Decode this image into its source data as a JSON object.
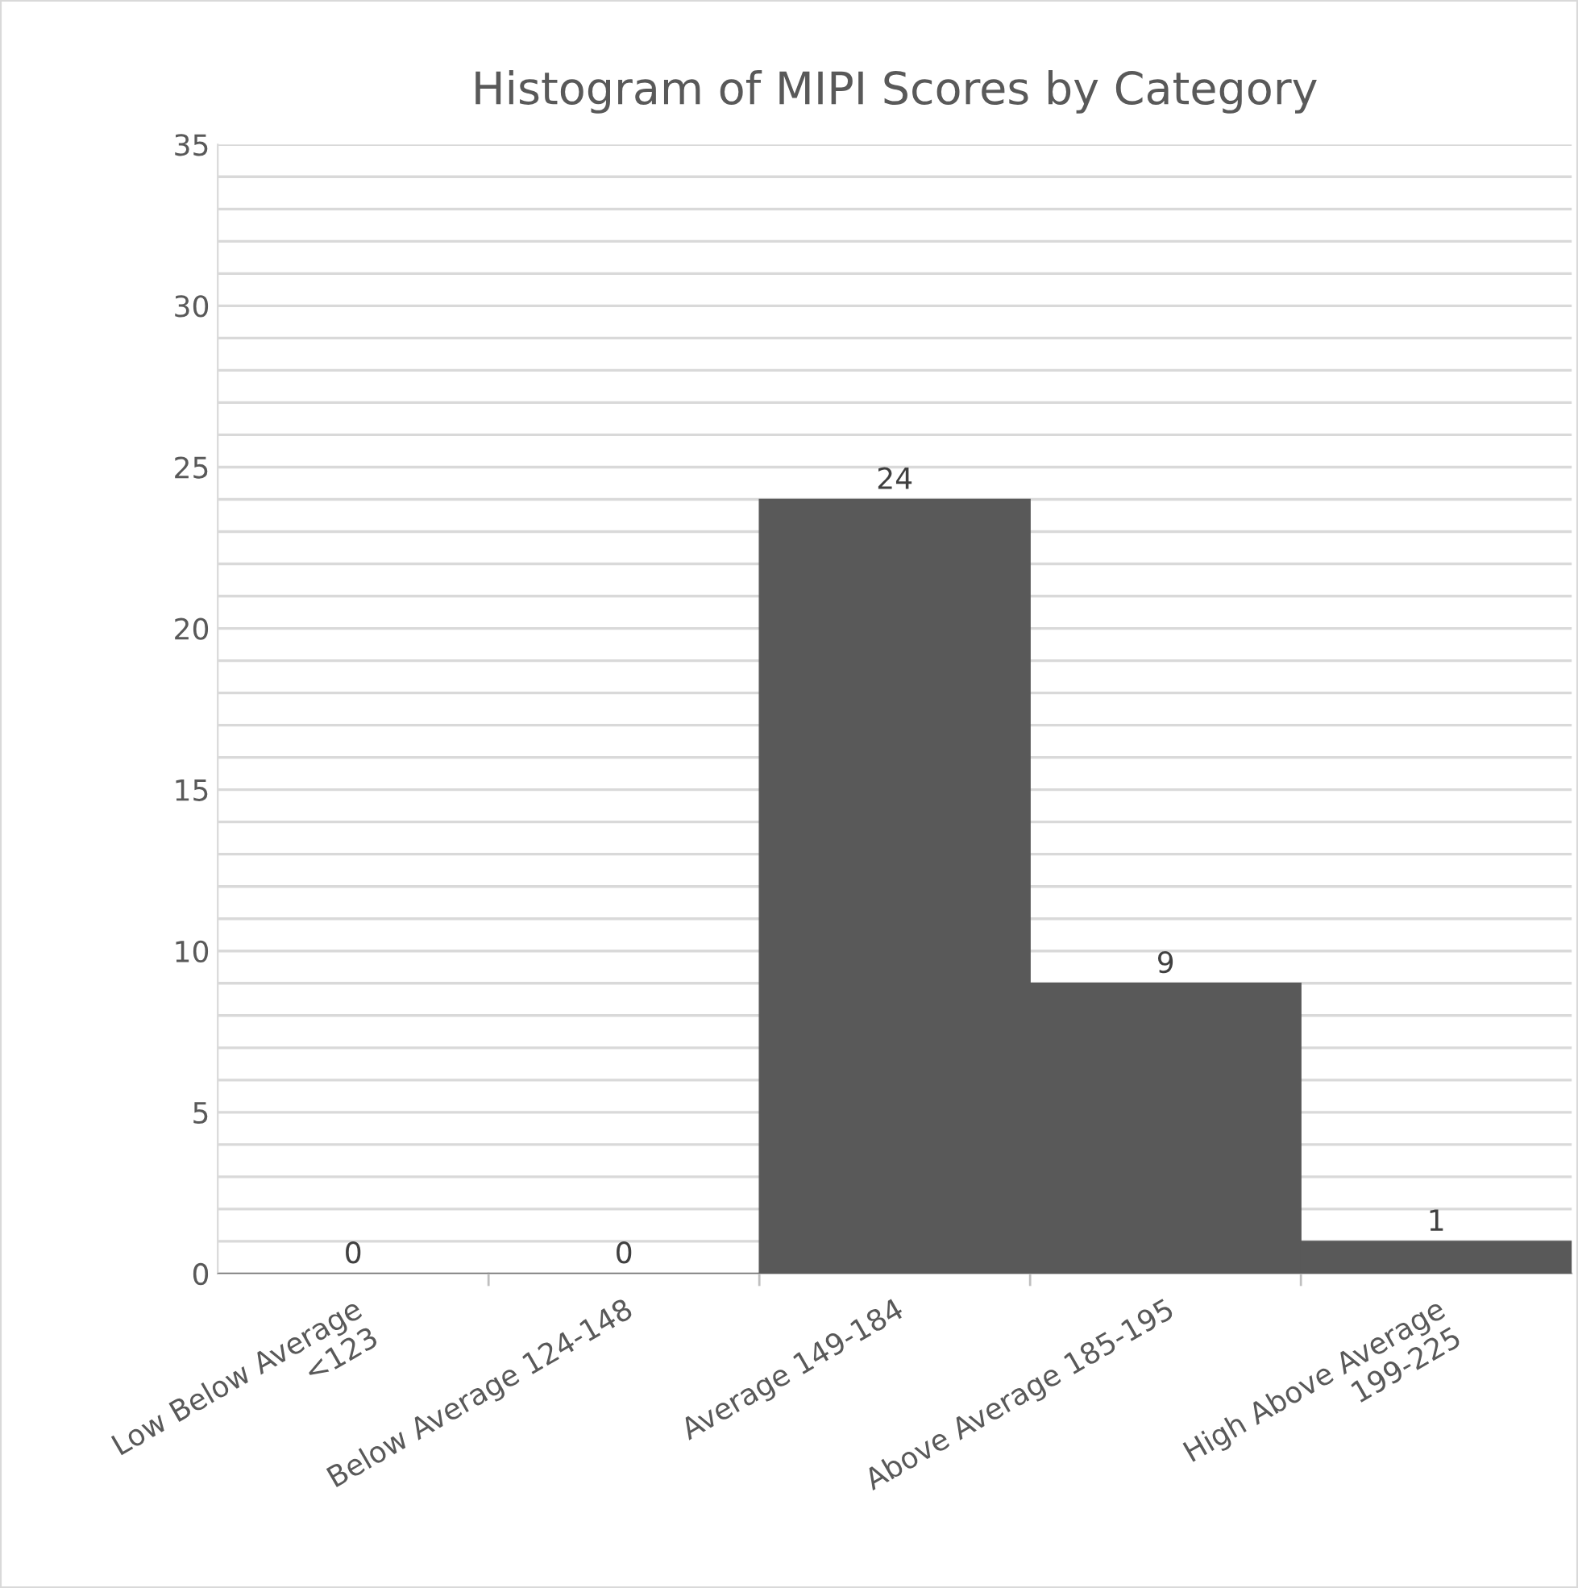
{
  "chart_data": {
    "type": "bar",
    "title": "Histogram of MIPI Scores by Category",
    "categories": [
      "Low Below Average\n<123",
      "Below Average 124-148",
      "Average 149-184",
      "Above Average 185-195",
      "High Above Average\n199-225"
    ],
    "values": [
      0,
      0,
      24,
      9,
      1
    ],
    "color": "#595959",
    "ylim": [
      0,
      35
    ],
    "yticks": [
      0,
      {
        "value": 1,
        "label": null
      },
      {
        "value": 2,
        "label": null
      },
      {
        "value": 3,
        "label": null
      },
      {
        "value": 4,
        "label": null
      },
      5,
      {
        "value": 6,
        "label": null
      },
      {
        "value": 7,
        "label": null
      },
      {
        "value": 8,
        "label": null
      },
      {
        "value": 9,
        "label": null
      },
      10,
      {
        "value": 11,
        "label": null
      },
      {
        "value": 12,
        "label": null
      },
      {
        "value": 13,
        "label": null
      },
      {
        "value": 14,
        "label": null
      },
      15,
      {
        "value": 16,
        "label": null
      },
      {
        "value": 17,
        "label": null
      },
      {
        "value": 18,
        "label": null
      },
      {
        "value": 19,
        "label": null
      },
      20,
      {
        "value": 21,
        "label": null
      },
      {
        "value": 22,
        "label": null
      },
      {
        "value": 23,
        "label": null
      },
      {
        "value": 24,
        "label": null
      },
      25,
      {
        "value": 26,
        "label": null
      },
      {
        "value": 27,
        "label": null
      },
      {
        "value": 28,
        "label": null
      },
      {
        "value": 29,
        "label": null
      },
      30,
      {
        "value": 31,
        "label": null
      },
      {
        "value": 32,
        "label": null
      },
      {
        "value": 33,
        "label": null
      },
      {
        "value": 34,
        "label": null
      },
      35
    ],
    "grid": "y",
    "data_labels": true
  }
}
